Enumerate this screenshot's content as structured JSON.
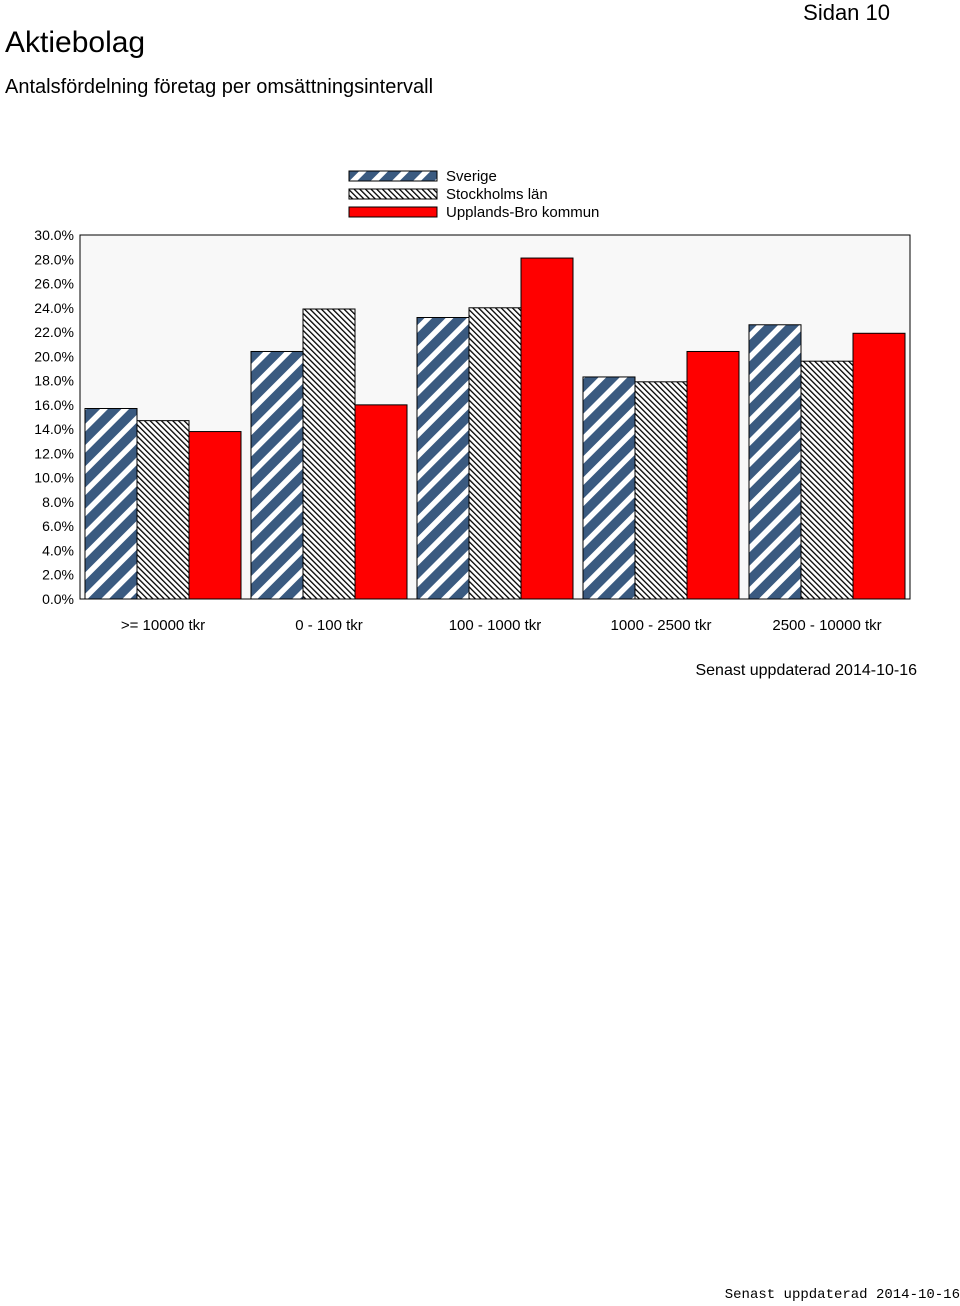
{
  "header": {
    "page": "Sidan 10",
    "title": "Aktiebolag",
    "subtitle": "Antalsfördelning företag per omsättningsintervall"
  },
  "chart_data": {
    "type": "bar",
    "categories": [
      ">= 10000 tkr",
      "0 - 100 tkr",
      "100 - 1000 tkr",
      "1000 - 2500 tkr",
      "2500 - 10000 tkr"
    ],
    "series": [
      {
        "name": "Sverige",
        "values": [
          15.7,
          20.4,
          23.2,
          18.3,
          22.6
        ],
        "color": "#3a5a80",
        "pattern": "diagonal-stripes"
      },
      {
        "name": "Stockholms län",
        "values": [
          14.7,
          23.9,
          24.0,
          17.9,
          19.6
        ],
        "color": "#000000",
        "pattern": "fine-hatch"
      },
      {
        "name": "Upplands-Bro kommun",
        "values": [
          13.8,
          16.0,
          28.1,
          20.4,
          21.9
        ],
        "color": "#ff0000",
        "pattern": "solid"
      }
    ],
    "ylim": [
      0,
      30
    ],
    "yticks": [
      "0.0%",
      "2.0%",
      "4.0%",
      "6.0%",
      "8.0%",
      "10.0%",
      "12.0%",
      "14.0%",
      "16.0%",
      "18.0%",
      "20.0%",
      "22.0%",
      "24.0%",
      "26.0%",
      "28.0%",
      "30.0%"
    ],
    "legend_position": "top",
    "plot_background": "#f8f8f8",
    "grid": false
  },
  "footer": {
    "updated": "Senast uppdaterad 2014-10-16",
    "stamp": "Senast uppdaterad 2014-10-16"
  }
}
